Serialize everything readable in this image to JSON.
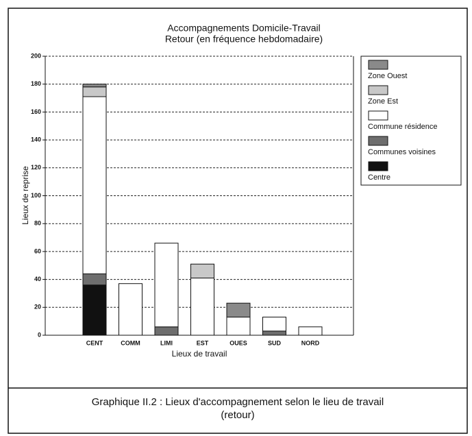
{
  "chart_data": {
    "type": "stacked_bar",
    "title": "Accompagnements Domicile-Travail",
    "subtitle": "Retour (en fréquence hebdomadaire)",
    "x_label": "Lieux de travail",
    "y_label": "Lieux de reprise",
    "categories": [
      "CENT",
      "COMM",
      "LIMI",
      "EST",
      "OUES",
      "SUD",
      "NORD"
    ],
    "series": [
      {
        "name": "Centre",
        "color": "#111111",
        "values": [
          36,
          0,
          0,
          0,
          0,
          0,
          0
        ]
      },
      {
        "name": "Communes voisines",
        "color": "#6e6e6e",
        "values": [
          8,
          0,
          6,
          0,
          0,
          3,
          0
        ]
      },
      {
        "name": "Commune résidence",
        "color": "#ffffff",
        "values": [
          127,
          37,
          60,
          41,
          13,
          10,
          6
        ]
      },
      {
        "name": "Zone Est",
        "color": "#c8c8c8",
        "values": [
          7,
          0,
          0,
          10,
          0,
          0,
          0
        ]
      },
      {
        "name": "Zone Ouest",
        "color": "#8a8a8a",
        "values": [
          2,
          0,
          0,
          0,
          10,
          0,
          0
        ]
      }
    ],
    "ylim": [
      0,
      200
    ],
    "yticks": [
      0,
      20,
      40,
      60,
      80,
      100,
      120,
      140,
      160,
      180,
      200
    ],
    "grid": true,
    "legend": "right",
    "caption": [
      "Graphique II.2 : Lieux d'accompagnement selon le lieu de travail",
      "(retour)"
    ]
  }
}
